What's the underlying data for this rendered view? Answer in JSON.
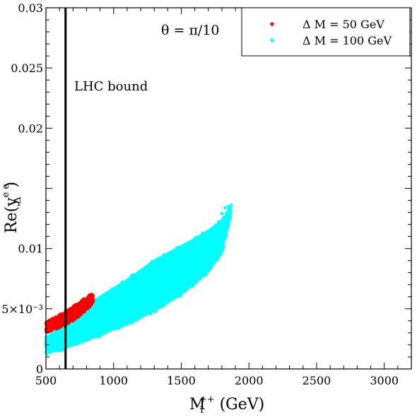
{
  "chart_data": {
    "type": "scatter",
    "annotation_theta": "θ = π/10",
    "annotation_bound": "LHC bound",
    "xlabel": {
      "main": "M",
      "sub": "1",
      "sup": "++",
      "unit": " (GeV)"
    },
    "ylabel": {
      "main": "Re(y",
      "sub": "Δ",
      "sup": "e e",
      "close": ")"
    },
    "xlim": [
      500,
      3200
    ],
    "ylim": [
      0,
      0.03
    ],
    "x_ticks": [
      {
        "value": 500,
        "label": "500"
      },
      {
        "value": 1000,
        "label": "1000"
      },
      {
        "value": 1500,
        "label": "1500"
      },
      {
        "value": 2000,
        "label": "2000"
      },
      {
        "value": 2500,
        "label": "2500"
      },
      {
        "value": 3000,
        "label": "3000"
      }
    ],
    "y_ticks": [
      {
        "value": 0,
        "label": "0"
      },
      {
        "value": 0.005,
        "label": "5×10⁻³"
      },
      {
        "value": 0.01,
        "label": "0.01"
      },
      {
        "value": 0.015,
        "label": ""
      },
      {
        "value": 0.02,
        "label": "0.02"
      },
      {
        "value": 0.025,
        "label": "0.025"
      },
      {
        "value": 0.03,
        "label": "0.03"
      }
    ],
    "lhc_bound_x": 645,
    "legend_position": "top-right",
    "series": [
      {
        "name": "Δ M = 50 GeV",
        "color": "#ff0000",
        "region": {
          "x": [
            500,
            550,
            600,
            650,
            700,
            750,
            800,
            850
          ],
          "y_low": [
            0.003,
            0.0032,
            0.0034,
            0.0037,
            0.004,
            0.0044,
            0.0049,
            0.0055
          ],
          "y_high": [
            0.0039,
            0.0042,
            0.0045,
            0.0048,
            0.0052,
            0.0056,
            0.006,
            0.0063
          ]
        }
      },
      {
        "name": "Δ M = 100 GeV",
        "color": "#00ffff",
        "region": {
          "x": [
            500,
            600,
            700,
            800,
            900,
            1000,
            1100,
            1200,
            1300,
            1400,
            1500,
            1600,
            1700,
            1800,
            1870
          ],
          "y_low": [
            0.0012,
            0.0015,
            0.0019,
            0.0023,
            0.0027,
            0.0032,
            0.0036,
            0.0042,
            0.0047,
            0.0054,
            0.0061,
            0.007,
            0.008,
            0.0095,
            0.0128
          ],
          "y_high": [
            0.0027,
            0.0034,
            0.0041,
            0.0052,
            0.0061,
            0.0068,
            0.0075,
            0.0083,
            0.0091,
            0.0097,
            0.0103,
            0.0109,
            0.0116,
            0.0124,
            0.0136
          ]
        }
      }
    ]
  }
}
